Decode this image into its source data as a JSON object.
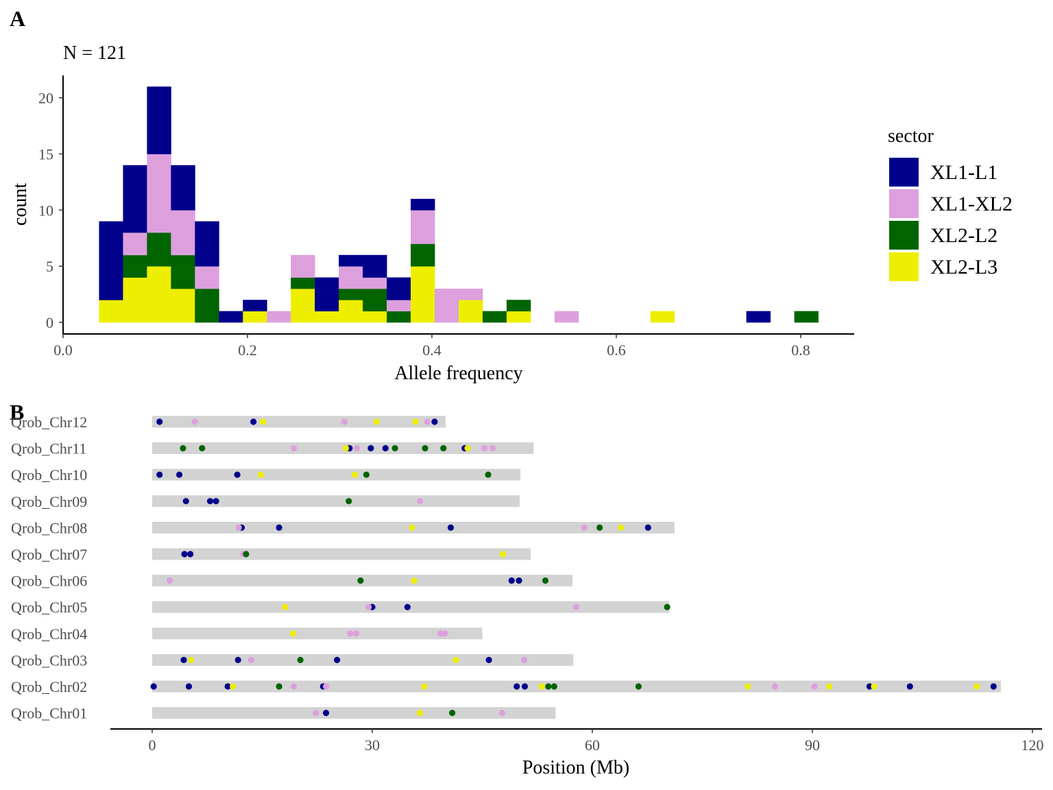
{
  "panel_labels": {
    "a": "A",
    "b": "B"
  },
  "colors": {
    "XL1-L1": "#00008b",
    "XL1-XL2": "#dda0dd",
    "XL2-L2": "#006400",
    "XL2-L3": "#eeee00",
    "chrom_bar": "#d3d3d3"
  },
  "chart_data": [
    {
      "type": "bar",
      "subtype": "stacked-histogram",
      "subtitle": "N = 121",
      "xlabel": "Allele frequency",
      "ylabel": "count",
      "xlim": [
        0.0,
        0.85
      ],
      "ylim": [
        0,
        21
      ],
      "xticks": [
        0.0,
        0.2,
        0.4,
        0.6,
        0.8
      ],
      "xtick_labels": [
        "0.0",
        "0.2",
        "0.4",
        "0.6",
        "0.8"
      ],
      "yticks": [
        0,
        5,
        10,
        15,
        20
      ],
      "ytick_labels": [
        "0",
        "5",
        "10",
        "15",
        "20"
      ],
      "grid": false,
      "legend": {
        "title": "sector",
        "placement": "right",
        "entries": [
          "XL1-L1",
          "XL1-XL2",
          "XL2-L2",
          "XL2-L3"
        ]
      },
      "bin_width": 0.026,
      "bin_centers": [
        0.052,
        0.078,
        0.104,
        0.13,
        0.156,
        0.182,
        0.208,
        0.234,
        0.26,
        0.286,
        0.312,
        0.338,
        0.364,
        0.39,
        0.416,
        0.442,
        0.468,
        0.494,
        0.52,
        0.546,
        0.572,
        0.598,
        0.624,
        0.65,
        0.676,
        0.702,
        0.728,
        0.754,
        0.78,
        0.806
      ],
      "series": [
        {
          "name": "XL2-L3",
          "values": [
            2,
            4,
            5,
            3,
            0,
            0,
            1,
            0,
            3,
            1,
            2,
            1,
            0,
            5,
            0,
            2,
            0,
            1,
            0,
            0,
            0,
            0,
            0,
            1,
            0,
            0,
            0,
            0,
            0,
            0
          ]
        },
        {
          "name": "XL2-L2",
          "values": [
            0,
            2,
            3,
            3,
            3,
            0,
            0,
            0,
            1,
            0,
            1,
            2,
            1,
            2,
            0,
            0,
            1,
            1,
            0,
            0,
            0,
            0,
            0,
            0,
            0,
            0,
            0,
            0,
            0,
            1
          ]
        },
        {
          "name": "XL1-XL2",
          "values": [
            0,
            2,
            7,
            4,
            2,
            0,
            0,
            1,
            2,
            0,
            2,
            1,
            1,
            3,
            3,
            1,
            0,
            0,
            0,
            1,
            0,
            0,
            0,
            0,
            0,
            0,
            0,
            0,
            0,
            0
          ]
        },
        {
          "name": "XL1-L1",
          "values": [
            7,
            6,
            6,
            4,
            4,
            1,
            1,
            0,
            0,
            3,
            1,
            2,
            2,
            1,
            0,
            0,
            0,
            0,
            0,
            0,
            0,
            0,
            0,
            0,
            0,
            0,
            0,
            1,
            0,
            0
          ]
        }
      ]
    },
    {
      "type": "scatter",
      "subtype": "chromosome-map",
      "xlabel": "Position (Mb)",
      "ylabel": "",
      "xlim": [
        -5,
        120
      ],
      "xticks": [
        0,
        30,
        60,
        90,
        120
      ],
      "xtick_labels": [
        "0",
        "30",
        "60",
        "90",
        "120"
      ],
      "grid": false,
      "chromosomes": [
        {
          "name": "Qrob_Chr12",
          "length": 40
        },
        {
          "name": "Qrob_Chr11",
          "length": 52
        },
        {
          "name": "Qrob_Chr10",
          "length": 50.2
        },
        {
          "name": "Qrob_Chr09",
          "length": 50.1
        },
        {
          "name": "Qrob_Chr08",
          "length": 71.2
        },
        {
          "name": "Qrob_Chr07",
          "length": 51.6
        },
        {
          "name": "Qrob_Chr06",
          "length": 57.3
        },
        {
          "name": "Qrob_Chr05",
          "length": 70.5
        },
        {
          "name": "Qrob_Chr04",
          "length": 45
        },
        {
          "name": "Qrob_Chr03",
          "length": 57.4
        },
        {
          "name": "Qrob_Chr02",
          "length": 115.7
        },
        {
          "name": "Qrob_Chr01",
          "length": 55
        }
      ],
      "series": [
        {
          "name": "XL1-L1",
          "points": [
            {
              "chrom": "Qrob_Chr12",
              "x": 1.0
            },
            {
              "chrom": "Qrob_Chr12",
              "x": 13.8
            },
            {
              "chrom": "Qrob_Chr12",
              "x": 38.5
            },
            {
              "chrom": "Qrob_Chr11",
              "x": 26.9
            },
            {
              "chrom": "Qrob_Chr11",
              "x": 29.8
            },
            {
              "chrom": "Qrob_Chr11",
              "x": 31.8
            },
            {
              "chrom": "Qrob_Chr11",
              "x": 42.6
            },
            {
              "chrom": "Qrob_Chr10",
              "x": 1.0
            },
            {
              "chrom": "Qrob_Chr10",
              "x": 3.7
            },
            {
              "chrom": "Qrob_Chr10",
              "x": 11.6
            },
            {
              "chrom": "Qrob_Chr09",
              "x": 4.6
            },
            {
              "chrom": "Qrob_Chr09",
              "x": 7.9
            },
            {
              "chrom": "Qrob_Chr09",
              "x": 8.7
            },
            {
              "chrom": "Qrob_Chr08",
              "x": 12.2
            },
            {
              "chrom": "Qrob_Chr08",
              "x": 17.3
            },
            {
              "chrom": "Qrob_Chr08",
              "x": 40.7
            },
            {
              "chrom": "Qrob_Chr08",
              "x": 67.6
            },
            {
              "chrom": "Qrob_Chr07",
              "x": 4.4
            },
            {
              "chrom": "Qrob_Chr07",
              "x": 5.2
            },
            {
              "chrom": "Qrob_Chr06",
              "x": 49.0
            },
            {
              "chrom": "Qrob_Chr06",
              "x": 50.0
            },
            {
              "chrom": "Qrob_Chr05",
              "x": 30.0
            },
            {
              "chrom": "Qrob_Chr05",
              "x": 34.8
            },
            {
              "chrom": "Qrob_Chr03",
              "x": 4.3
            },
            {
              "chrom": "Qrob_Chr03",
              "x": 11.7
            },
            {
              "chrom": "Qrob_Chr03",
              "x": 25.2
            },
            {
              "chrom": "Qrob_Chr03",
              "x": 45.9
            },
            {
              "chrom": "Qrob_Chr02",
              "x": 0.2
            },
            {
              "chrom": "Qrob_Chr02",
              "x": 5.0
            },
            {
              "chrom": "Qrob_Chr02",
              "x": 10.3
            },
            {
              "chrom": "Qrob_Chr02",
              "x": 23.3
            },
            {
              "chrom": "Qrob_Chr02",
              "x": 49.7
            },
            {
              "chrom": "Qrob_Chr02",
              "x": 50.8
            },
            {
              "chrom": "Qrob_Chr02",
              "x": 97.8
            },
            {
              "chrom": "Qrob_Chr02",
              "x": 103.3
            },
            {
              "chrom": "Qrob_Chr02",
              "x": 114.7
            },
            {
              "chrom": "Qrob_Chr01",
              "x": 23.7
            }
          ]
        },
        {
          "name": "XL1-XL2",
          "points": [
            {
              "chrom": "Qrob_Chr12",
              "x": 5.8
            },
            {
              "chrom": "Qrob_Chr12",
              "x": 26.2
            },
            {
              "chrom": "Qrob_Chr12",
              "x": 37.5
            },
            {
              "chrom": "Qrob_Chr11",
              "x": 19.3
            },
            {
              "chrom": "Qrob_Chr11",
              "x": 27.9
            },
            {
              "chrom": "Qrob_Chr11",
              "x": 45.3
            },
            {
              "chrom": "Qrob_Chr11",
              "x": 46.4
            },
            {
              "chrom": "Qrob_Chr09",
              "x": 36.5
            },
            {
              "chrom": "Qrob_Chr08",
              "x": 11.8
            },
            {
              "chrom": "Qrob_Chr08",
              "x": 58.9
            },
            {
              "chrom": "Qrob_Chr07",
              "x": 12.4
            },
            {
              "chrom": "Qrob_Chr06",
              "x": 2.4
            },
            {
              "chrom": "Qrob_Chr05",
              "x": 29.5
            },
            {
              "chrom": "Qrob_Chr05",
              "x": 57.8
            },
            {
              "chrom": "Qrob_Chr04",
              "x": 27.0
            },
            {
              "chrom": "Qrob_Chr04",
              "x": 27.8
            },
            {
              "chrom": "Qrob_Chr04",
              "x": 39.3
            },
            {
              "chrom": "Qrob_Chr04",
              "x": 39.9
            },
            {
              "chrom": "Qrob_Chr03",
              "x": 13.5
            },
            {
              "chrom": "Qrob_Chr03",
              "x": 50.7
            },
            {
              "chrom": "Qrob_Chr02",
              "x": 19.3
            },
            {
              "chrom": "Qrob_Chr02",
              "x": 23.7
            },
            {
              "chrom": "Qrob_Chr02",
              "x": 84.9
            },
            {
              "chrom": "Qrob_Chr02",
              "x": 90.3
            },
            {
              "chrom": "Qrob_Chr01",
              "x": 22.3
            },
            {
              "chrom": "Qrob_Chr01",
              "x": 47.7
            }
          ]
        },
        {
          "name": "XL2-L2",
          "points": [
            {
              "chrom": "Qrob_Chr11",
              "x": 4.2
            },
            {
              "chrom": "Qrob_Chr11",
              "x": 6.8
            },
            {
              "chrom": "Qrob_Chr11",
              "x": 33.1
            },
            {
              "chrom": "Qrob_Chr11",
              "x": 37.2
            },
            {
              "chrom": "Qrob_Chr11",
              "x": 39.7
            },
            {
              "chrom": "Qrob_Chr10",
              "x": 29.2
            },
            {
              "chrom": "Qrob_Chr10",
              "x": 45.8
            },
            {
              "chrom": "Qrob_Chr09",
              "x": 26.8
            },
            {
              "chrom": "Qrob_Chr08",
              "x": 61.0
            },
            {
              "chrom": "Qrob_Chr07",
              "x": 12.8
            },
            {
              "chrom": "Qrob_Chr06",
              "x": 28.4
            },
            {
              "chrom": "Qrob_Chr06",
              "x": 53.6
            },
            {
              "chrom": "Qrob_Chr05",
              "x": 70.2
            },
            {
              "chrom": "Qrob_Chr03",
              "x": 20.2
            },
            {
              "chrom": "Qrob_Chr02",
              "x": 17.3
            },
            {
              "chrom": "Qrob_Chr02",
              "x": 54.0
            },
            {
              "chrom": "Qrob_Chr02",
              "x": 54.8
            },
            {
              "chrom": "Qrob_Chr02",
              "x": 66.3
            },
            {
              "chrom": "Qrob_Chr01",
              "x": 40.9
            }
          ]
        },
        {
          "name": "XL2-L3",
          "points": [
            {
              "chrom": "Qrob_Chr12",
              "x": 15.1
            },
            {
              "chrom": "Qrob_Chr12",
              "x": 30.6
            },
            {
              "chrom": "Qrob_Chr12",
              "x": 35.9
            },
            {
              "chrom": "Qrob_Chr11",
              "x": 26.4
            },
            {
              "chrom": "Qrob_Chr11",
              "x": 43.0
            },
            {
              "chrom": "Qrob_Chr10",
              "x": 14.8
            },
            {
              "chrom": "Qrob_Chr10",
              "x": 27.6
            },
            {
              "chrom": "Qrob_Chr08",
              "x": 35.4
            },
            {
              "chrom": "Qrob_Chr08",
              "x": 63.9
            },
            {
              "chrom": "Qrob_Chr07",
              "x": 47.8
            },
            {
              "chrom": "Qrob_Chr06",
              "x": 35.7
            },
            {
              "chrom": "Qrob_Chr05",
              "x": 18.1
            },
            {
              "chrom": "Qrob_Chr04",
              "x": 19.2
            },
            {
              "chrom": "Qrob_Chr03",
              "x": 5.3
            },
            {
              "chrom": "Qrob_Chr03",
              "x": 41.4
            },
            {
              "chrom": "Qrob_Chr02",
              "x": 11.0
            },
            {
              "chrom": "Qrob_Chr02",
              "x": 37.1
            },
            {
              "chrom": "Qrob_Chr02",
              "x": 53.1
            },
            {
              "chrom": "Qrob_Chr02",
              "x": 81.2
            },
            {
              "chrom": "Qrob_Chr02",
              "x": 92.3
            },
            {
              "chrom": "Qrob_Chr02",
              "x": 98.4
            },
            {
              "chrom": "Qrob_Chr02",
              "x": 112.4
            },
            {
              "chrom": "Qrob_Chr01",
              "x": 36.5
            }
          ]
        }
      ]
    }
  ]
}
